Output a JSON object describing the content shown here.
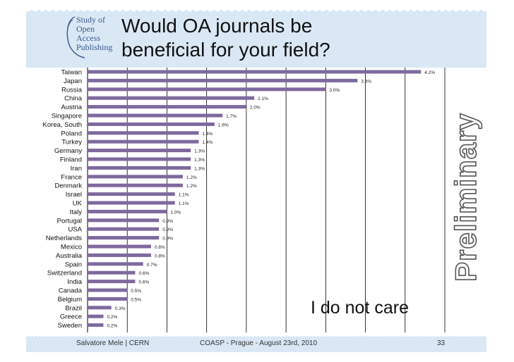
{
  "title": {
    "line1": "Would OA journals be",
    "line2": "beneficial for your field?"
  },
  "logo": {
    "lines": [
      "Study of",
      "Open",
      "Access",
      "Publishing"
    ]
  },
  "side_label": "Preliminary",
  "annotation": "I do not care",
  "footer": {
    "author": "Salvatore Mele | CERN",
    "event": "COASP - Prague - August 23rd, 2010",
    "page": "33"
  },
  "colors": {
    "bar": "#7e6a9e",
    "band": "#d9e8f4",
    "logo": "#3a5a8c"
  },
  "chart_data": {
    "type": "bar",
    "orientation": "horizontal",
    "title": "Would OA journals be beneficial for your field?",
    "xlabel": "",
    "ylabel": "",
    "xlim": [
      0,
      4.5
    ],
    "grid": true,
    "categories": [
      "Taiwan",
      "Japan",
      "Russia",
      "China",
      "Austria",
      "Singapore",
      "Korea, South",
      "Poland",
      "Turkey",
      "Germany",
      "Finland",
      "Iran",
      "France",
      "Denmark",
      "Israel",
      "UK",
      "Italy",
      "Portugal",
      "USA",
      "Netherlands",
      "Mexico",
      "Australia",
      "Spain",
      "Switzerland",
      "India",
      "Canada",
      "Belgium",
      "Brazil",
      "Greece",
      "Sweden"
    ],
    "values": [
      4.2,
      3.4,
      3.0,
      2.1,
      2.0,
      1.7,
      1.6,
      1.4,
      1.4,
      1.3,
      1.3,
      1.3,
      1.2,
      1.2,
      1.1,
      1.1,
      1.0,
      0.9,
      0.9,
      0.9,
      0.8,
      0.8,
      0.7,
      0.6,
      0.6,
      0.5,
      0.5,
      0.3,
      0.2,
      0.2
    ],
    "data_labels": [
      "4.2%",
      "3.4%",
      "3.0%",
      "2.1%",
      "2.0%",
      "1.7%",
      "1.6%",
      "1.4%",
      "1.4%",
      "1.3%",
      "1.3%",
      "1.3%",
      "1.2%",
      "1.2%",
      "1.1%",
      "1.1%",
      "1.0%",
      "0.9%",
      "0.9%",
      "0.9%",
      "0.8%",
      "0.8%",
      "0.7%",
      "0.6%",
      "0.6%",
      "0.5%",
      "0.5%",
      "0.3%",
      "0.2%",
      "0.2%"
    ]
  }
}
